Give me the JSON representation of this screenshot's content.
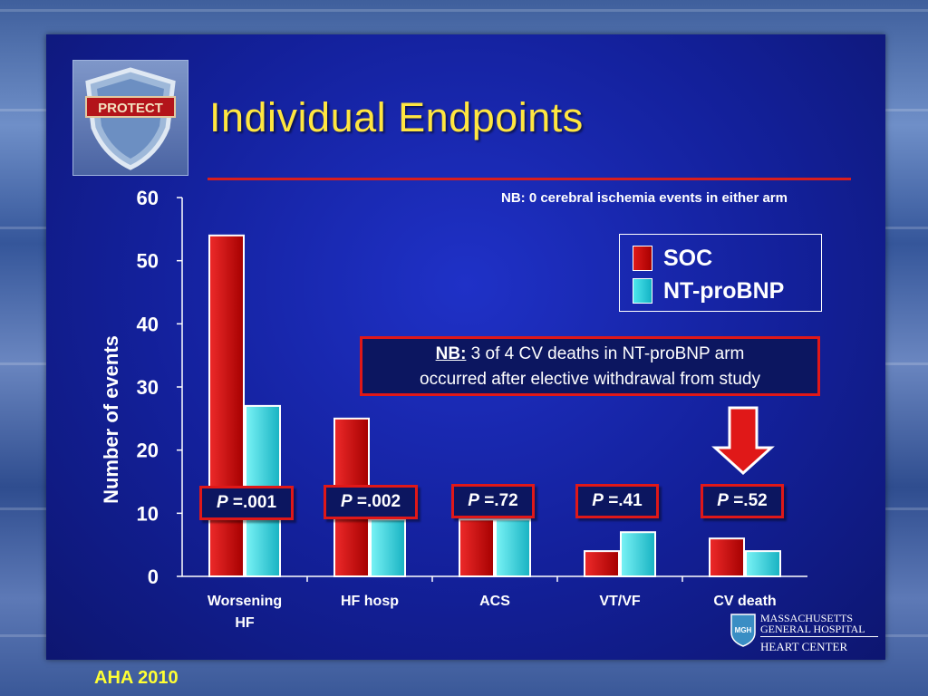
{
  "slide": {
    "title": "Individual Endpoints",
    "note_top": "NB: 0 cerebral ischemia events in either arm",
    "logo_text": "PROTECT",
    "nb_box": {
      "head": "NB:",
      "line1": " 3 of 4 CV deaths in NT-proBNP arm",
      "line2": "occurred after elective withdrawal from study"
    },
    "p_values": [
      {
        "p": "P",
        "value": " =.001"
      },
      {
        "p": "P",
        "value": " =.002"
      },
      {
        "p": "P",
        "value": " =.72"
      },
      {
        "p": "P",
        "value": " =.41"
      },
      {
        "p": "P",
        "value": " =.52"
      }
    ],
    "footer": "AHA 2010",
    "institution": {
      "badge": "MGH",
      "line1": "MASSACHUSETTS",
      "line2": "GENERAL HOSPITAL",
      "line3": "HEART CENTER"
    }
  },
  "chart_data": {
    "type": "bar",
    "categories": [
      "Worsening HF",
      "HF hosp",
      "ACS",
      "VT/VF",
      "CV death"
    ],
    "category_lines": [
      [
        "Worsening",
        "HF"
      ],
      [
        "HF hosp"
      ],
      [
        "ACS"
      ],
      [
        "VT/VF"
      ],
      [
        "CV death"
      ]
    ],
    "series": [
      {
        "name": "SOC",
        "color": "#d41414",
        "values": [
          54,
          25,
          9,
          4,
          6
        ]
      },
      {
        "name": "NT-proBNP",
        "color": "#2fd0dc",
        "values": [
          27,
          9,
          9,
          7,
          4
        ]
      }
    ],
    "ylabel": "Number of events",
    "ylim": [
      0,
      60
    ],
    "yticks": [
      0,
      10,
      20,
      30,
      40,
      50,
      60
    ],
    "legend_position": "top-right",
    "grid": false
  }
}
